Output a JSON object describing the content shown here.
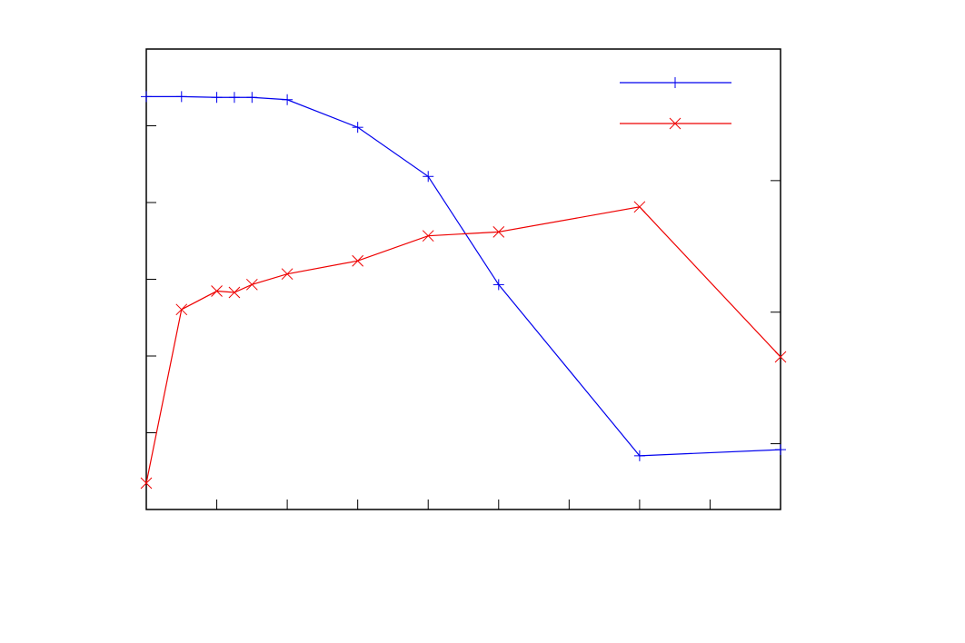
{
  "chart_data": {
    "type": "line",
    "title": "",
    "xlabel": "",
    "ylabel": "",
    "y2label": "",
    "xlim": [
      0,
      18
    ],
    "ylim": [
      0,
      6
    ],
    "y2lim": [
      0,
      3.5
    ],
    "xticks": [
      0,
      2,
      4,
      6,
      8,
      10,
      12,
      14,
      16,
      18
    ],
    "yticks": [
      1,
      2,
      3,
      4,
      5
    ],
    "y2ticks": [
      0.5,
      1.5,
      2.5
    ],
    "grid": false,
    "legend": "top-right",
    "colors": {
      "series1": "#0000ee",
      "series2": "#ee0000"
    },
    "series": [
      {
        "axis": "left",
        "marker": "plus",
        "points": [
          [
            0,
            5.38
          ],
          [
            1,
            5.38
          ],
          [
            2,
            5.37
          ],
          [
            2.5,
            5.37
          ],
          [
            3,
            5.37
          ],
          [
            4,
            5.34
          ],
          [
            6,
            4.98
          ],
          [
            8,
            4.34
          ],
          [
            10,
            2.93
          ],
          [
            14,
            0.7
          ],
          [
            18,
            0.78
          ]
        ]
      },
      {
        "axis": "right",
        "marker": "cross",
        "points": [
          [
            0,
            0.2
          ],
          [
            1,
            1.52
          ],
          [
            2,
            1.66
          ],
          [
            2.5,
            1.65
          ],
          [
            3,
            1.71
          ],
          [
            4,
            1.79
          ],
          [
            6,
            1.89
          ],
          [
            8,
            2.08
          ],
          [
            10,
            2.11
          ],
          [
            14,
            2.3
          ],
          [
            18,
            1.16
          ]
        ]
      }
    ]
  }
}
